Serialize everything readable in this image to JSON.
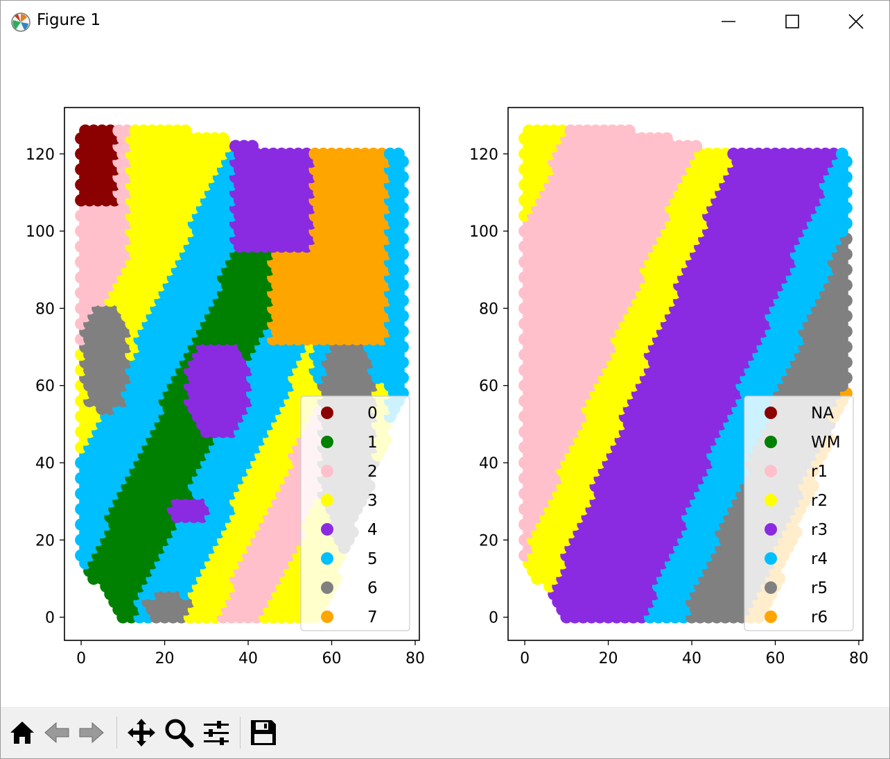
{
  "window": {
    "title": "Figure 1"
  },
  "toolbar": {
    "buttons": [
      {
        "name": "home-button",
        "icon": "home-icon"
      },
      {
        "name": "back-button",
        "icon": "arrow-left-icon"
      },
      {
        "name": "forward-button",
        "icon": "arrow-right-icon"
      },
      {
        "name": "pan-button",
        "icon": "move-icon"
      },
      {
        "name": "zoom-button",
        "icon": "zoom-icon"
      },
      {
        "name": "configure-subplots-button",
        "icon": "sliders-icon"
      },
      {
        "name": "save-button",
        "icon": "floppy-disk-icon"
      }
    ]
  },
  "chart_data": [
    {
      "type": "scatter",
      "title": "",
      "xlabel": "",
      "ylabel": "",
      "xlim": [
        -4,
        81
      ],
      "ylim": [
        -6,
        132
      ],
      "xticks": [
        "0",
        "20",
        "40",
        "60",
        "80"
      ],
      "yticks": [
        "0",
        "20",
        "40",
        "60",
        "80",
        "100",
        "120"
      ],
      "legend_location": "lower right",
      "series": [
        {
          "name": "0",
          "color": "#8b0000"
        },
        {
          "name": "1",
          "color": "#008000"
        },
        {
          "name": "2",
          "color": "#ffc0cb"
        },
        {
          "name": "3",
          "color": "#ffff00"
        },
        {
          "name": "4",
          "color": "#8a2be2"
        },
        {
          "name": "5",
          "color": "#00bfff"
        },
        {
          "name": "6",
          "color": "#808080"
        },
        {
          "name": "7",
          "color": "#ffa500"
        }
      ]
    },
    {
      "type": "scatter",
      "title": "",
      "xlabel": "",
      "ylabel": "",
      "xlim": [
        -4,
        81
      ],
      "ylim": [
        -6,
        132
      ],
      "xticks": [
        "0",
        "20",
        "40",
        "60",
        "80"
      ],
      "yticks": [
        "0",
        "20",
        "40",
        "60",
        "80",
        "100",
        "120"
      ],
      "legend_location": "lower right",
      "series": [
        {
          "name": "NA",
          "color": "#8b0000"
        },
        {
          "name": "WM",
          "color": "#008000"
        },
        {
          "name": "r1",
          "color": "#ffc0cb"
        },
        {
          "name": "r2",
          "color": "#ffff00"
        },
        {
          "name": "r3",
          "color": "#8a2be2"
        },
        {
          "name": "r4",
          "color": "#00bfff"
        },
        {
          "name": "r5",
          "color": "#808080"
        },
        {
          "name": "r6",
          "color": "#ffa500"
        }
      ]
    }
  ]
}
